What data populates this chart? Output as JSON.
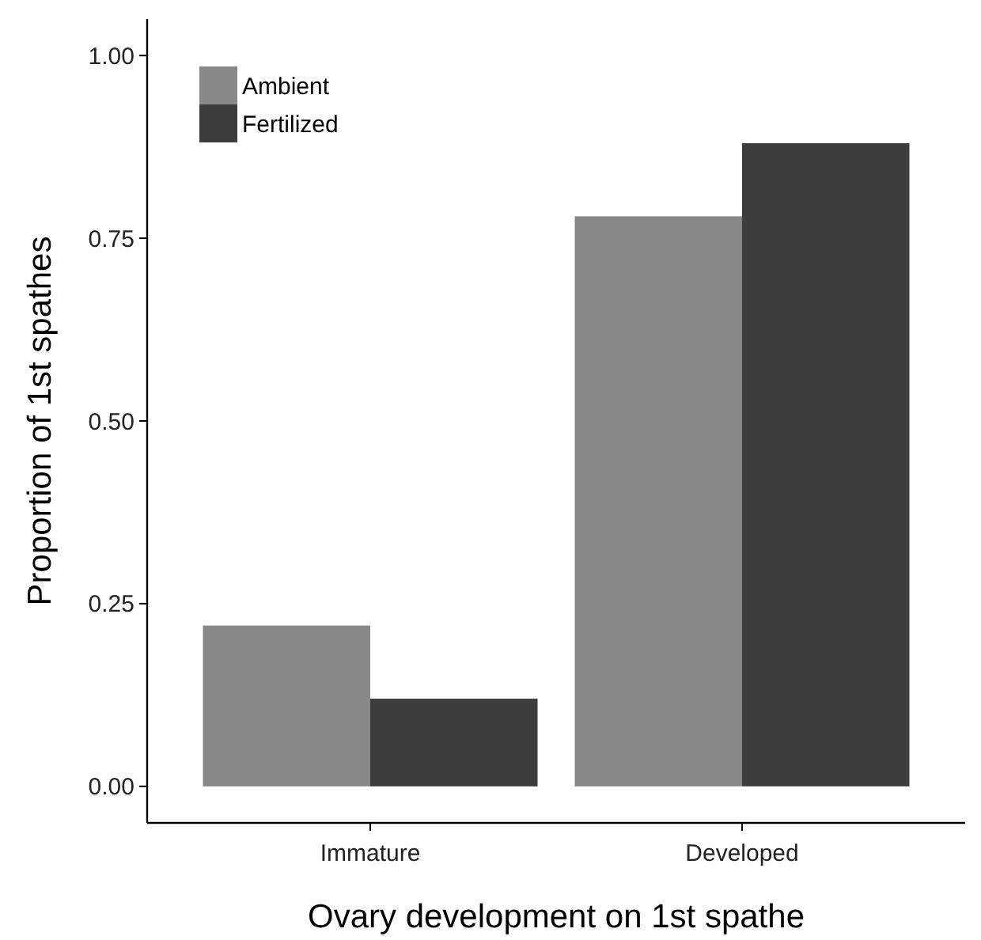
{
  "chart_data": {
    "type": "bar",
    "xlabel": "Ovary development on 1st spathe",
    "ylabel": "Proportion of 1st spathes",
    "categories": [
      "Immature",
      "Developed"
    ],
    "series": [
      {
        "name": "Ambient",
        "color": "#888888",
        "values": [
          0.22,
          0.78
        ]
      },
      {
        "name": "Fertilized",
        "color": "#3d3d3d",
        "values": [
          0.12,
          0.88
        ]
      }
    ],
    "ylim": [
      -0.05,
      1.05
    ],
    "yticks": [
      {
        "value": 0,
        "label": "0.00"
      },
      {
        "value": 0.25,
        "label": "0.25"
      },
      {
        "value": 0.5,
        "label": "0.50"
      },
      {
        "value": 0.75,
        "label": "0.75"
      },
      {
        "value": 1,
        "label": "1.00"
      }
    ],
    "grid": false,
    "legend": "top left"
  }
}
